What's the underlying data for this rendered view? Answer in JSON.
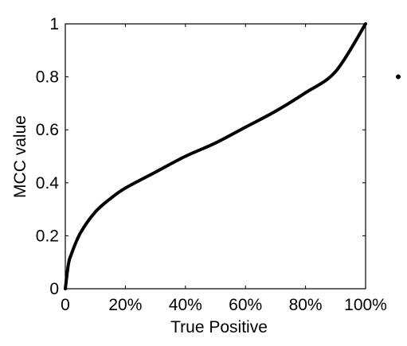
{
  "chart_data": {
    "type": "line",
    "title": "",
    "xlabel": "True Positive",
    "ylabel": "MCC value",
    "xlim": [
      0,
      100
    ],
    "ylim": [
      0,
      1
    ],
    "grid": false,
    "x_ticks": [
      "0",
      "20%",
      "40%",
      "60%",
      "80%",
      "100%"
    ],
    "y_ticks": [
      "0",
      "0.2",
      "0.4",
      "0.6",
      "0.8",
      "1"
    ],
    "series": [
      {
        "color": "#000000",
        "x": [
          0,
          1,
          2,
          5,
          10,
          15,
          20,
          30,
          40,
          50,
          60,
          70,
          80,
          90,
          100
        ],
        "y": [
          0,
          0.09,
          0.13,
          0.21,
          0.29,
          0.34,
          0.38,
          0.44,
          0.5,
          0.55,
          0.61,
          0.67,
          0.74,
          0.82,
          1.0
        ]
      }
    ]
  },
  "marker": {
    "symbol": "•"
  }
}
